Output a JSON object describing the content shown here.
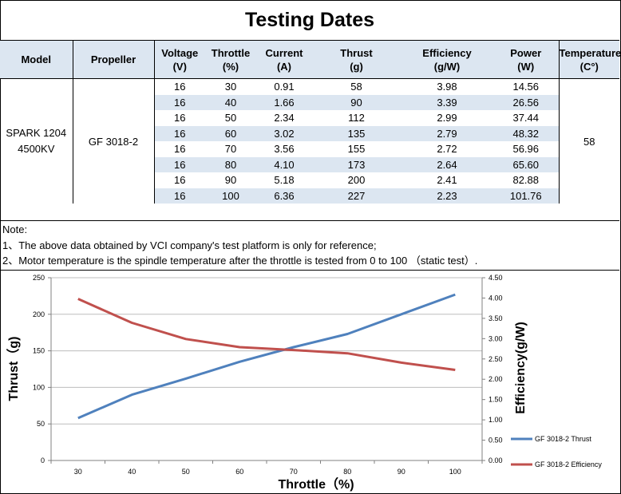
{
  "title": "Testing Dates",
  "table": {
    "headers": [
      {
        "line1": "Model",
        "line2": ""
      },
      {
        "line1": "Propeller",
        "line2": ""
      },
      {
        "line1": "Voltage",
        "line2": "(V)"
      },
      {
        "line1": "Throttle",
        "line2": "(%)"
      },
      {
        "line1": "Current",
        "line2": "(A)"
      },
      {
        "line1": "Thrust",
        "line2": "(g)"
      },
      {
        "line1": "Efficiency",
        "line2": "(g/W)"
      },
      {
        "line1": "Power",
        "line2": "(W)"
      },
      {
        "line1": "Temperature",
        "line2": "(C°)"
      }
    ],
    "model_line1": "SPARK 1204",
    "model_line2": "4500KV",
    "propeller": "GF 3018-2",
    "temperature": "58",
    "rows": [
      [
        "16",
        "30",
        "0.91",
        "58",
        "3.98",
        "14.56"
      ],
      [
        "16",
        "40",
        "1.66",
        "90",
        "3.39",
        "26.56"
      ],
      [
        "16",
        "50",
        "2.34",
        "112",
        "2.99",
        "37.44"
      ],
      [
        "16",
        "60",
        "3.02",
        "135",
        "2.79",
        "48.32"
      ],
      [
        "16",
        "70",
        "3.56",
        "155",
        "2.72",
        "56.96"
      ],
      [
        "16",
        "80",
        "4.10",
        "173",
        "2.64",
        "65.60"
      ],
      [
        "16",
        "90",
        "5.18",
        "200",
        "2.41",
        "82.88"
      ],
      [
        "16",
        "100",
        "6.36",
        "227",
        "2.23",
        "101.76"
      ]
    ]
  },
  "notes": {
    "label": "Note:",
    "line1": "1、The above data obtained by VCI company's test platform is only for reference;",
    "line2": "2、Motor temperature is the spindle temperature after the throttle is tested from 0 to 100 （static test）."
  },
  "chart_data": {
    "type": "line",
    "x": [
      30,
      40,
      50,
      60,
      70,
      80,
      90,
      100
    ],
    "xlabel": "Throttle（%)",
    "ylabel": "Thrust（g)",
    "y2label": "Efficiency(g/W)",
    "ylim": [
      0,
      250
    ],
    "y2lim": [
      0,
      4.5
    ],
    "yticks": [
      "0",
      "50",
      "100",
      "150",
      "200",
      "250"
    ],
    "y2ticks": [
      "0.00",
      "0.50",
      "1.00",
      "1.50",
      "2.00",
      "2.50",
      "3.00",
      "3.50",
      "4.00",
      "4.50"
    ],
    "xticks": [
      "30",
      "40",
      "50",
      "60",
      "70",
      "80",
      "90",
      "100"
    ],
    "grid": true,
    "legend_position": "right",
    "series": [
      {
        "name": "GF 3018-2 Thrust",
        "axis": "left",
        "color": "#4f81bd",
        "values": [
          58,
          90,
          112,
          135,
          155,
          173,
          200,
          227
        ]
      },
      {
        "name": "GF 3018-2 Efficiency",
        "axis": "right",
        "color": "#c0504d",
        "values": [
          3.98,
          3.39,
          2.99,
          2.79,
          2.72,
          2.64,
          2.41,
          2.23
        ]
      }
    ]
  }
}
